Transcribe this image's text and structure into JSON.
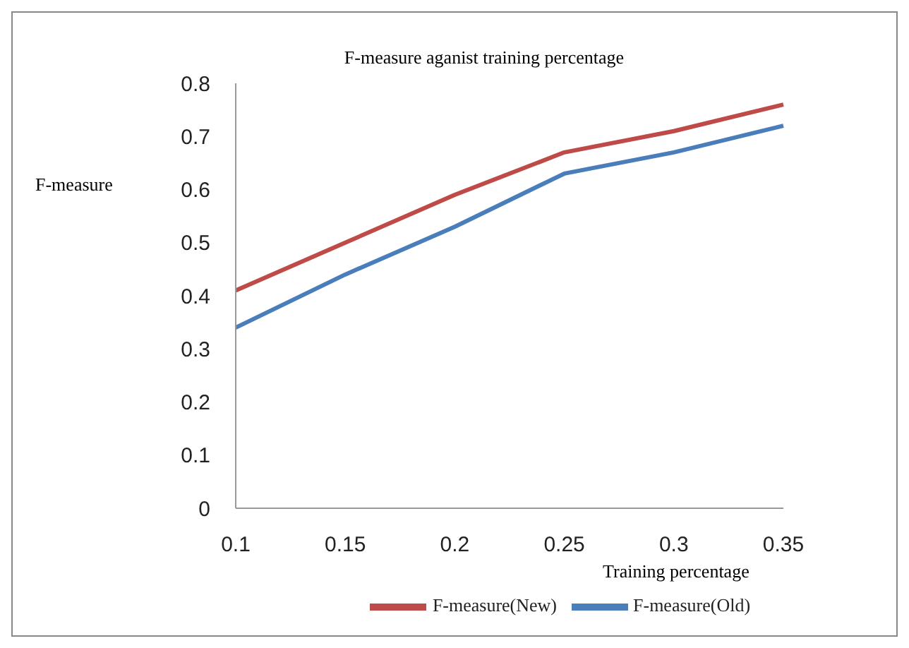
{
  "chart_data": {
    "type": "line",
    "title": "F-measure aganist training percentage",
    "xlabel": "Training percentage",
    "ylabel": "F-measure",
    "categories": [
      "0.1",
      "0.15",
      "0.2",
      "0.25",
      "0.3",
      "0.35"
    ],
    "series": [
      {
        "name": "F-measure(Old)",
        "color": "#4a7ebb",
        "values": [
          0.34,
          0.44,
          0.53,
          0.63,
          0.67,
          0.72
        ]
      },
      {
        "name": "F-measure(New)",
        "color": "#be4b48",
        "values": [
          0.41,
          0.5,
          0.59,
          0.67,
          0.71,
          0.76
        ]
      }
    ],
    "ylim": [
      0,
      0.8
    ],
    "yticks": [
      0,
      0.1,
      0.2,
      0.3,
      0.4,
      0.5,
      0.6,
      0.7,
      0.8
    ],
    "grid": false,
    "legend": "bottom",
    "marker": "none",
    "line_style": "solid"
  }
}
